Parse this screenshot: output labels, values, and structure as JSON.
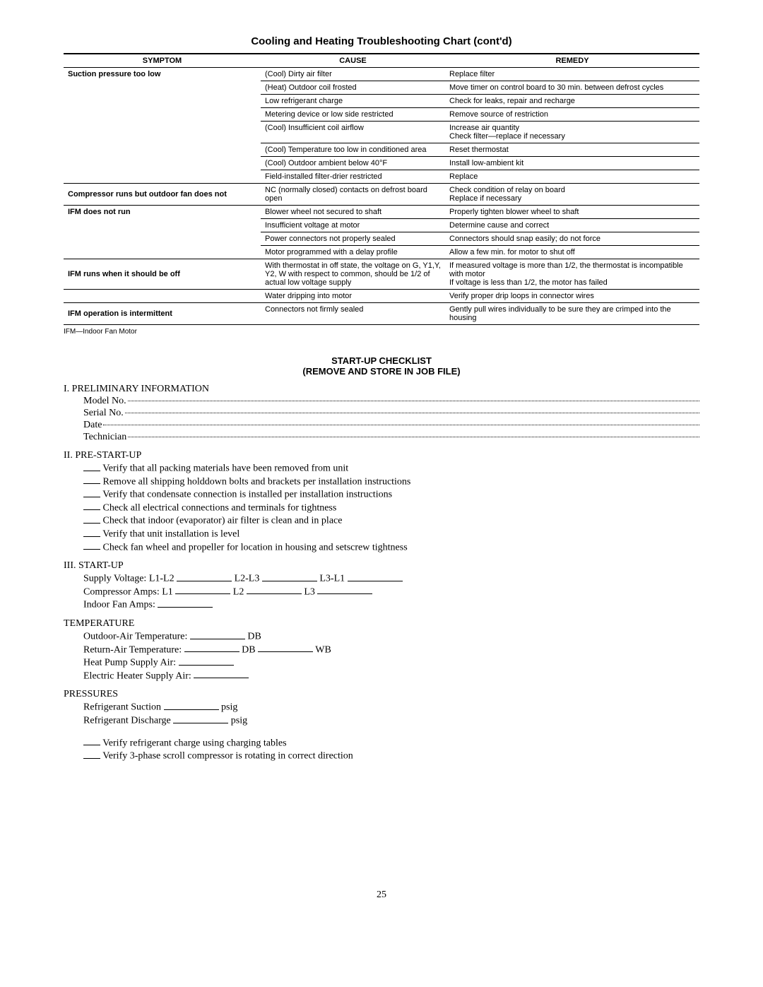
{
  "title": "Cooling and Heating Troubleshooting Chart (cont'd)",
  "headers": {
    "symptom": "SYMPTOM",
    "cause": "CAUSE",
    "remedy": "REMEDY"
  },
  "rows": [
    {
      "symptom": "Suction pressure too low",
      "cause": "(Cool) Dirty air filter",
      "remedy": "Replace filter"
    },
    {
      "symptom": "",
      "cause": "(Heat) Outdoor coil frosted",
      "remedy": "Move timer on control board to 30 min. between defrost cycles"
    },
    {
      "symptom": "",
      "cause": "Low refrigerant charge",
      "remedy": "Check for leaks, repair and recharge"
    },
    {
      "symptom": "",
      "cause": "Metering device or low side restricted",
      "remedy": "Remove source of restriction"
    },
    {
      "symptom": "",
      "cause": "(Cool) Insufficient coil airflow",
      "remedy": "Increase air quantity\nCheck filter—replace if necessary"
    },
    {
      "symptom": "",
      "cause": "(Cool) Temperature too low in conditioned area",
      "remedy": "Reset thermostat"
    },
    {
      "symptom": "",
      "cause": "(Cool) Outdoor ambient below 40°F",
      "remedy": "Install low-ambient kit"
    },
    {
      "symptom": "",
      "cause": "Field-installed filter-drier restricted",
      "remedy": "Replace"
    },
    {
      "symptom": "Compressor runs but outdoor fan does not",
      "cause": "NC (normally closed) contacts on defrost board open",
      "remedy": "Check condition of relay on board\nReplace if necessary"
    },
    {
      "symptom": "IFM does not run",
      "cause": "Blower wheel not secured to shaft",
      "remedy": "Properly tighten blower wheel to shaft"
    },
    {
      "symptom": "",
      "cause": "Insufficient voltage at motor",
      "remedy": "Determine cause and correct"
    },
    {
      "symptom": "",
      "cause": "Power connectors not properly sealed",
      "remedy": "Connectors should snap easily; do not force"
    },
    {
      "symptom": "",
      "cause": "Motor programmed with a delay profile",
      "remedy": "Allow a few min. for motor to shut off"
    },
    {
      "symptom": "IFM runs when it should be off",
      "cause": "With thermostat in off state, the voltage on G, Y1,Y, Y2, W with respect to common, should be 1/2 of actual low voltage supply",
      "remedy": "If measured voltage is more than 1/2, the thermostat is incompatible with motor\nIf voltage is less than 1/2, the motor has failed"
    },
    {
      "symptom": "",
      "cause": "Water dripping into motor",
      "remedy": "Verify proper drip loops in connector wires"
    },
    {
      "symptom": "IFM operation is intermittent",
      "cause": "Connectors not firmly sealed",
      "remedy": "Gently pull wires individually to be sure they are crimped into the housing"
    }
  ],
  "group_spans": [
    8,
    1,
    4,
    1,
    1,
    1
  ],
  "table_note": "IFM—Indoor Fan Motor",
  "checklist_title1": "START-UP CHECKLIST",
  "checklist_title2": "(REMOVE AND STORE IN JOB FILE)",
  "sec1_head": "I. PRELIMINARY INFORMATION",
  "sec1_fields": [
    "Model No.",
    "Serial No.",
    "Date",
    "Technician"
  ],
  "sec2_head": "II. PRE-START-UP",
  "sec2_items": [
    "Verify that all packing materials have been removed from unit",
    "Remove all shipping holddown bolts and brackets per installation instructions",
    "Verify that condensate connection is installed per installation instructions",
    "Check all electrical connections and terminals for tightness",
    "Check that indoor (evaporator) air filter is clean and in place",
    "Verify that unit installation is level",
    "Check fan wheel and propeller for location in housing and setscrew tightness"
  ],
  "sec3_head": "III. START-UP",
  "sec3_sv_label": "Supply Voltage:",
  "sec3_sv_parts": [
    "L1-L2",
    "L2-L3",
    "L3-L1"
  ],
  "sec3_ca_label": "Compressor Amps:",
  "sec3_ca_parts": [
    "L1",
    "L2",
    "L3"
  ],
  "sec3_ifa": "Indoor Fan Amps:",
  "temp_head": "TEMPERATURE",
  "temp_oat": "Outdoor-Air Temperature:",
  "temp_db": "DB",
  "temp_rat": "Return-Air Temperature:",
  "temp_wb": "WB",
  "temp_hp": "Heat Pump Supply Air:",
  "temp_eh": "Electric Heater Supply Air:",
  "press_head": "PRESSURES",
  "press_suc": "Refrigerant Suction",
  "press_dis": "Refrigerant Discharge",
  "press_unit": "psig",
  "verify_items": [
    "Verify refrigerant charge using charging tables",
    "Verify 3-phase scroll compressor is rotating in correct direction"
  ],
  "page_number": "25"
}
